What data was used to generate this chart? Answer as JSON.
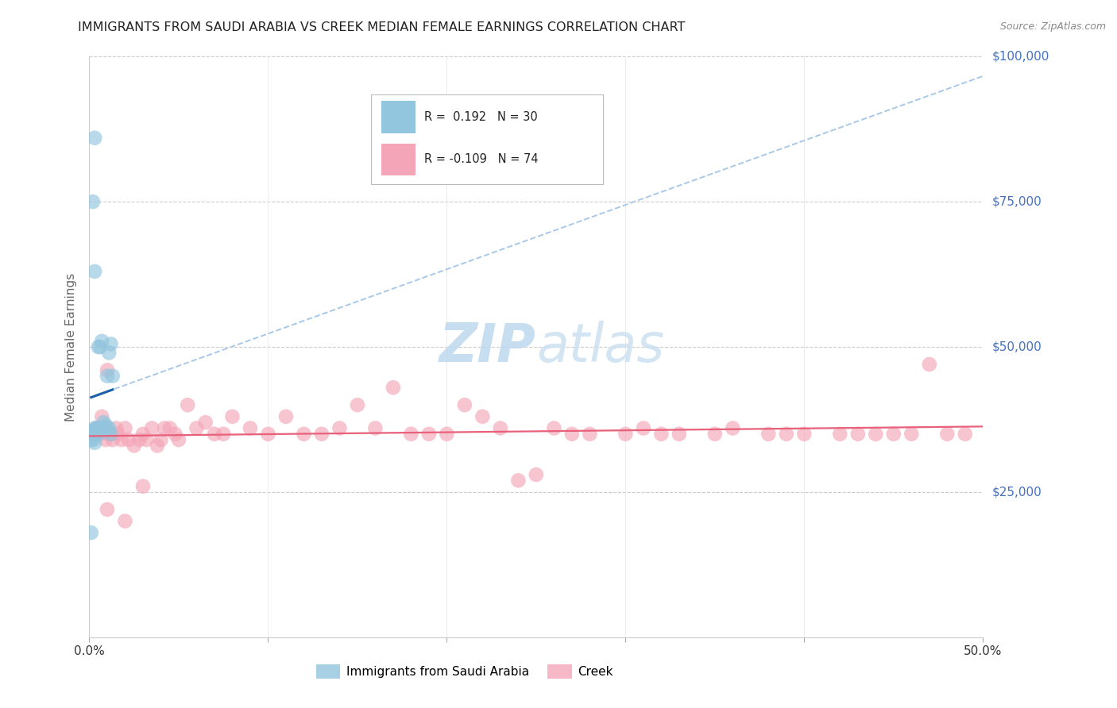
{
  "title": "IMMIGRANTS FROM SAUDI ARABIA VS CREEK MEDIAN FEMALE EARNINGS CORRELATION CHART",
  "source": "Source: ZipAtlas.com",
  "ylabel": "Median Female Earnings",
  "xlim": [
    0,
    0.5
  ],
  "ylim": [
    0,
    100000
  ],
  "yticks": [
    0,
    25000,
    50000,
    75000,
    100000
  ],
  "xticks": [
    0.0,
    0.1,
    0.2,
    0.3,
    0.4,
    0.5
  ],
  "xtick_labels": [
    "0.0%",
    "",
    "",
    "",
    "",
    "50.0%"
  ],
  "legend1_r": "0.192",
  "legend1_n": "30",
  "legend2_r": "-0.109",
  "legend2_n": "74",
  "blue_color": "#92c5de",
  "pink_color": "#f4a6b8",
  "blue_line_color": "#1a5fa8",
  "pink_line_color": "#e8607a",
  "dashed_line_color": "#a8c8e8",
  "grid_color": "#cccccc",
  "title_color": "#222222",
  "right_label_color": "#4472c4",
  "blue_scatter_x": [
    0.001,
    0.001,
    0.001,
    0.002,
    0.002,
    0.002,
    0.002,
    0.003,
    0.003,
    0.003,
    0.003,
    0.004,
    0.004,
    0.005,
    0.005,
    0.005,
    0.006,
    0.006,
    0.007,
    0.007,
    0.008,
    0.009,
    0.01,
    0.01,
    0.011,
    0.011,
    0.012,
    0.012,
    0.013,
    0.003
  ],
  "blue_scatter_y": [
    34000,
    18000,
    35500,
    35000,
    35000,
    34000,
    75000,
    35500,
    36000,
    33500,
    86000,
    36000,
    35000,
    36000,
    50000,
    35000,
    50000,
    35500,
    51000,
    36000,
    37000,
    36500,
    36000,
    45000,
    49000,
    36000,
    50500,
    35000,
    45000,
    63000
  ],
  "pink_scatter_x": [
    0.002,
    0.003,
    0.004,
    0.005,
    0.006,
    0.007,
    0.008,
    0.009,
    0.01,
    0.011,
    0.012,
    0.013,
    0.015,
    0.016,
    0.018,
    0.02,
    0.022,
    0.025,
    0.028,
    0.03,
    0.032,
    0.035,
    0.038,
    0.04,
    0.042,
    0.045,
    0.048,
    0.05,
    0.055,
    0.06,
    0.065,
    0.07,
    0.075,
    0.08,
    0.09,
    0.1,
    0.11,
    0.12,
    0.13,
    0.14,
    0.15,
    0.16,
    0.17,
    0.18,
    0.19,
    0.2,
    0.21,
    0.22,
    0.23,
    0.24,
    0.25,
    0.26,
    0.27,
    0.28,
    0.3,
    0.31,
    0.32,
    0.33,
    0.35,
    0.36,
    0.38,
    0.39,
    0.4,
    0.42,
    0.43,
    0.44,
    0.45,
    0.46,
    0.47,
    0.48,
    0.49,
    0.01,
    0.02,
    0.03
  ],
  "pink_scatter_y": [
    35000,
    35500,
    36000,
    35000,
    35000,
    38000,
    36000,
    34000,
    46000,
    35000,
    35000,
    34000,
    36000,
    35000,
    34000,
    36000,
    34000,
    33000,
    34000,
    35000,
    34000,
    36000,
    33000,
    34000,
    36000,
    36000,
    35000,
    34000,
    40000,
    36000,
    37000,
    35000,
    35000,
    38000,
    36000,
    35000,
    38000,
    35000,
    35000,
    36000,
    40000,
    36000,
    43000,
    35000,
    35000,
    35000,
    40000,
    38000,
    36000,
    27000,
    28000,
    36000,
    35000,
    35000,
    35000,
    36000,
    35000,
    35000,
    35000,
    36000,
    35000,
    35000,
    35000,
    35000,
    35000,
    35000,
    35000,
    35000,
    47000,
    35000,
    35000,
    22000,
    20000,
    26000
  ]
}
